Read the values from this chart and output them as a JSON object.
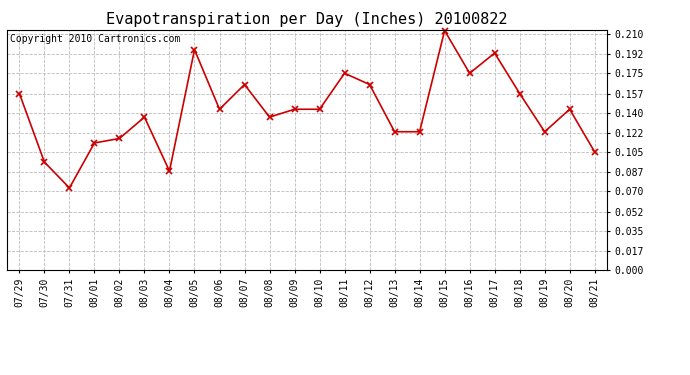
{
  "title": "Evapotranspiration per Day (Inches) 20100822",
  "copyright": "Copyright 2010 Cartronics.com",
  "x_labels": [
    "07/29",
    "07/30",
    "07/31",
    "08/01",
    "08/02",
    "08/03",
    "08/04",
    "08/05",
    "08/06",
    "08/07",
    "08/08",
    "08/09",
    "08/10",
    "08/11",
    "08/12",
    "08/13",
    "08/14",
    "08/15",
    "08/16",
    "08/17",
    "08/18",
    "08/19",
    "08/20",
    "08/21"
  ],
  "y_values": [
    0.157,
    0.096,
    0.073,
    0.113,
    0.117,
    0.136,
    0.088,
    0.196,
    0.143,
    0.165,
    0.136,
    0.143,
    0.143,
    0.175,
    0.165,
    0.123,
    0.123,
    0.213,
    0.175,
    0.193,
    0.157,
    0.123,
    0.143,
    0.105
  ],
  "y_ticks": [
    0.0,
    0.017,
    0.035,
    0.052,
    0.07,
    0.087,
    0.105,
    0.122,
    0.14,
    0.157,
    0.175,
    0.192,
    0.21
  ],
  "ylim": [
    0.0,
    0.2135
  ],
  "line_color": "#cc0000",
  "marker": "x",
  "marker_size": 5,
  "line_width": 1.2,
  "bg_color": "#ffffff",
  "grid_color": "#bbbbbb",
  "title_fontsize": 11,
  "tick_fontsize": 7,
  "copyright_fontsize": 7
}
